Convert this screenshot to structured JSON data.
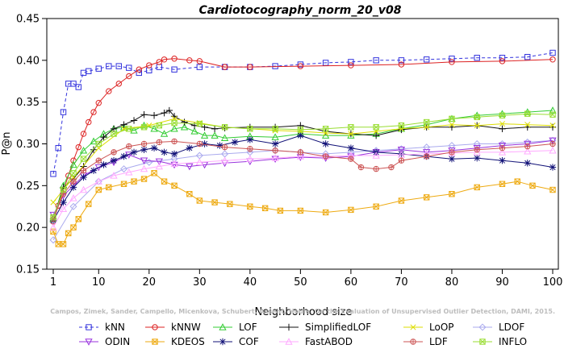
{
  "chart_data": {
    "type": "line",
    "title": "Cardiotocography_norm_20_v08",
    "xlabel": "Neighborhood size",
    "ylabel": "P@n",
    "xlim": [
      1,
      100
    ],
    "ylim": [
      0.15,
      0.45
    ],
    "xticks": [
      1,
      10,
      20,
      30,
      40,
      50,
      60,
      70,
      80,
      90,
      100
    ],
    "yticks": [
      0.15,
      0.2,
      0.25,
      0.3,
      0.35,
      0.4,
      0.45
    ],
    "xtick_labels": [
      "1",
      "10",
      "20",
      "30",
      "40",
      "50",
      "60",
      "70",
      "80",
      "90",
      "100"
    ],
    "ytick_labels": [
      "0.15",
      "0.20",
      "0.25",
      "0.30",
      "0.35",
      "0.40",
      "0.45"
    ],
    "grid": false,
    "legend_position": "bottom",
    "watermark": "Campos, Zimek, Sander, Campello, Micenkova, Schubert, Assent, Houle. On the Evaluation of Unsupervised Outlier Detection, DAMI, 2015.",
    "series": [
      {
        "name": "kNN",
        "color": "#3333dd",
        "marker": "square",
        "dash": "4,3",
        "x": [
          1,
          2,
          3,
          4,
          5,
          6,
          7,
          8,
          10,
          12,
          14,
          16,
          18,
          20,
          22,
          25,
          30,
          35,
          40,
          45,
          50,
          55,
          60,
          65,
          70,
          75,
          80,
          85,
          90,
          95,
          100
        ],
        "y": [
          0.264,
          0.295,
          0.338,
          0.372,
          0.372,
          0.368,
          0.385,
          0.387,
          0.39,
          0.393,
          0.393,
          0.391,
          0.385,
          0.388,
          0.392,
          0.389,
          0.392,
          0.392,
          0.392,
          0.393,
          0.395,
          0.397,
          0.398,
          0.4,
          0.4,
          0.401,
          0.402,
          0.403,
          0.403,
          0.404,
          0.409
        ]
      },
      {
        "name": "kNNW",
        "color": "#dd2222",
        "marker": "circle",
        "dash": "",
        "x": [
          1,
          2,
          3,
          4,
          5,
          6,
          7,
          8,
          9,
          10,
          12,
          14,
          16,
          18,
          20,
          22,
          23,
          25,
          28,
          30,
          35,
          40,
          50,
          60,
          70,
          80,
          90,
          100
        ],
        "y": [
          0.207,
          0.226,
          0.244,
          0.262,
          0.28,
          0.296,
          0.312,
          0.326,
          0.338,
          0.349,
          0.363,
          0.372,
          0.381,
          0.389,
          0.394,
          0.398,
          0.401,
          0.402,
          0.4,
          0.399,
          0.392,
          0.392,
          0.393,
          0.394,
          0.395,
          0.398,
          0.399,
          0.401
        ]
      },
      {
        "name": "LOF",
        "color": "#33cc33",
        "marker": "triangle",
        "dash": "",
        "x": [
          1,
          3,
          5,
          7,
          9,
          11,
          13,
          15,
          17,
          19,
          21,
          23,
          25,
          27,
          29,
          31,
          33,
          35,
          40,
          45,
          50,
          55,
          60,
          65,
          70,
          75,
          80,
          85,
          90,
          95,
          100
        ],
        "y": [
          0.21,
          0.25,
          0.275,
          0.292,
          0.303,
          0.312,
          0.318,
          0.32,
          0.316,
          0.322,
          0.318,
          0.312,
          0.318,
          0.32,
          0.315,
          0.31,
          0.31,
          0.307,
          0.309,
          0.308,
          0.312,
          0.31,
          0.31,
          0.312,
          0.318,
          0.323,
          0.33,
          0.334,
          0.336,
          0.338,
          0.34
        ]
      },
      {
        "name": "SimplifiedLOF",
        "color": "#111111",
        "marker": "plus",
        "dash": "",
        "x": [
          1,
          3,
          5,
          7,
          9,
          11,
          13,
          15,
          17,
          19,
          21,
          23,
          24,
          25,
          27,
          29,
          31,
          33,
          35,
          40,
          45,
          50,
          55,
          60,
          65,
          70,
          75,
          80,
          85,
          90,
          95,
          100
        ],
        "y": [
          0.21,
          0.248,
          0.258,
          0.273,
          0.293,
          0.308,
          0.318,
          0.323,
          0.328,
          0.335,
          0.334,
          0.337,
          0.34,
          0.333,
          0.326,
          0.322,
          0.32,
          0.318,
          0.319,
          0.32,
          0.32,
          0.322,
          0.315,
          0.312,
          0.31,
          0.317,
          0.32,
          0.32,
          0.322,
          0.318,
          0.32,
          0.32
        ]
      },
      {
        "name": "LoOP",
        "color": "#dddd00",
        "marker": "x",
        "dash": "",
        "x": [
          1,
          5,
          10,
          15,
          20,
          25,
          30,
          35,
          40,
          45,
          50,
          55,
          60,
          65,
          70,
          75,
          80,
          85,
          90,
          95,
          100
        ],
        "y": [
          0.23,
          0.26,
          0.295,
          0.318,
          0.322,
          0.33,
          0.325,
          0.32,
          0.318,
          0.316,
          0.315,
          0.313,
          0.312,
          0.315,
          0.318,
          0.32,
          0.323,
          0.322,
          0.324,
          0.323,
          0.322
        ]
      },
      {
        "name": "LDOF",
        "color": "#aaaaee",
        "marker": "diamond",
        "dash": "",
        "x": [
          1,
          5,
          10,
          15,
          20,
          25,
          30,
          35,
          40,
          45,
          50,
          55,
          60,
          65,
          70,
          75,
          80,
          85,
          90,
          95,
          100
        ],
        "y": [
          0.185,
          0.225,
          0.255,
          0.27,
          0.278,
          0.282,
          0.286,
          0.288,
          0.29,
          0.292,
          0.29,
          0.288,
          0.29,
          0.292,
          0.294,
          0.296,
          0.298,
          0.3,
          0.3,
          0.302,
          0.304
        ]
      },
      {
        "name": "ODIN",
        "color": "#9933dd",
        "marker": "triangle-down",
        "dash": "",
        "x": [
          1,
          3,
          5,
          7,
          10,
          13,
          16,
          19,
          22,
          25,
          28,
          31,
          35,
          40,
          45,
          50,
          55,
          60,
          65,
          70,
          75,
          80,
          85,
          90,
          95,
          100
        ],
        "y": [
          0.215,
          0.238,
          0.25,
          0.262,
          0.272,
          0.278,
          0.287,
          0.28,
          0.279,
          0.275,
          0.273,
          0.275,
          0.277,
          0.279,
          0.282,
          0.284,
          0.283,
          0.285,
          0.29,
          0.293,
          0.29,
          0.292,
          0.295,
          0.298,
          0.3,
          0.304
        ]
      },
      {
        "name": "KDEOS",
        "color": "#eeaa11",
        "marker": "square-x",
        "dash": "",
        "x": [
          1,
          2,
          3,
          4,
          5,
          6,
          8,
          10,
          12,
          15,
          17,
          19,
          21,
          23,
          25,
          28,
          30,
          33,
          36,
          40,
          43,
          46,
          50,
          55,
          60,
          65,
          70,
          75,
          80,
          85,
          90,
          93,
          96,
          100
        ],
        "y": [
          0.195,
          0.18,
          0.18,
          0.193,
          0.2,
          0.21,
          0.228,
          0.245,
          0.248,
          0.252,
          0.255,
          0.258,
          0.265,
          0.255,
          0.25,
          0.24,
          0.232,
          0.23,
          0.228,
          0.225,
          0.223,
          0.22,
          0.22,
          0.218,
          0.221,
          0.225,
          0.232,
          0.236,
          0.24,
          0.248,
          0.252,
          0.255,
          0.25,
          0.245
        ]
      },
      {
        "name": "COF",
        "color": "#111177",
        "marker": "asterisk",
        "dash": "",
        "x": [
          1,
          3,
          5,
          7,
          9,
          11,
          13,
          15,
          17,
          19,
          21,
          23,
          25,
          28,
          31,
          34,
          37,
          40,
          45,
          50,
          55,
          60,
          65,
          70,
          75,
          80,
          85,
          90,
          95,
          100
        ],
        "y": [
          0.208,
          0.23,
          0.248,
          0.26,
          0.268,
          0.275,
          0.28,
          0.285,
          0.29,
          0.293,
          0.295,
          0.29,
          0.288,
          0.295,
          0.3,
          0.298,
          0.302,
          0.305,
          0.3,
          0.31,
          0.3,
          0.295,
          0.29,
          0.288,
          0.285,
          0.282,
          0.283,
          0.28,
          0.277,
          0.272
        ]
      },
      {
        "name": "FastABOD",
        "color": "#ffaaff",
        "marker": "triangle-outline",
        "dash": "",
        "x": [
          1,
          3,
          5,
          7,
          10,
          13,
          16,
          19,
          22,
          25,
          30,
          35,
          40,
          45,
          50,
          55,
          60,
          65,
          70,
          75,
          80,
          85,
          90,
          95,
          100
        ],
        "y": [
          0.2,
          0.222,
          0.235,
          0.245,
          0.255,
          0.262,
          0.266,
          0.27,
          0.273,
          0.276,
          0.278,
          0.28,
          0.282,
          0.283,
          0.285,
          0.285,
          0.286,
          0.286,
          0.287,
          0.288,
          0.289,
          0.29,
          0.29,
          0.291,
          0.292
        ]
      },
      {
        "name": "LDF",
        "color": "#cc5555",
        "marker": "circle-plus",
        "dash": "",
        "x": [
          1,
          3,
          5,
          7,
          10,
          13,
          16,
          19,
          22,
          25,
          30,
          35,
          40,
          45,
          50,
          55,
          60,
          62,
          65,
          68,
          70,
          75,
          80,
          85,
          90,
          95,
          100
        ],
        "y": [
          0.21,
          0.24,
          0.255,
          0.268,
          0.28,
          0.29,
          0.297,
          0.3,
          0.302,
          0.303,
          0.3,
          0.296,
          0.294,
          0.292,
          0.29,
          0.285,
          0.282,
          0.272,
          0.27,
          0.272,
          0.28,
          0.285,
          0.29,
          0.293,
          0.295,
          0.297,
          0.3
        ]
      },
      {
        "name": "INFLO",
        "color": "#99dd33",
        "marker": "square-x",
        "dash": "",
        "x": [
          1,
          3,
          5,
          7,
          10,
          13,
          16,
          19,
          22,
          25,
          30,
          35,
          40,
          45,
          50,
          55,
          60,
          65,
          70,
          75,
          80,
          85,
          90,
          95,
          100
        ],
        "y": [
          0.212,
          0.245,
          0.265,
          0.282,
          0.3,
          0.312,
          0.318,
          0.32,
          0.322,
          0.325,
          0.324,
          0.32,
          0.318,
          0.318,
          0.317,
          0.318,
          0.32,
          0.32,
          0.322,
          0.326,
          0.33,
          0.332,
          0.334,
          0.336,
          0.335
        ]
      }
    ]
  }
}
